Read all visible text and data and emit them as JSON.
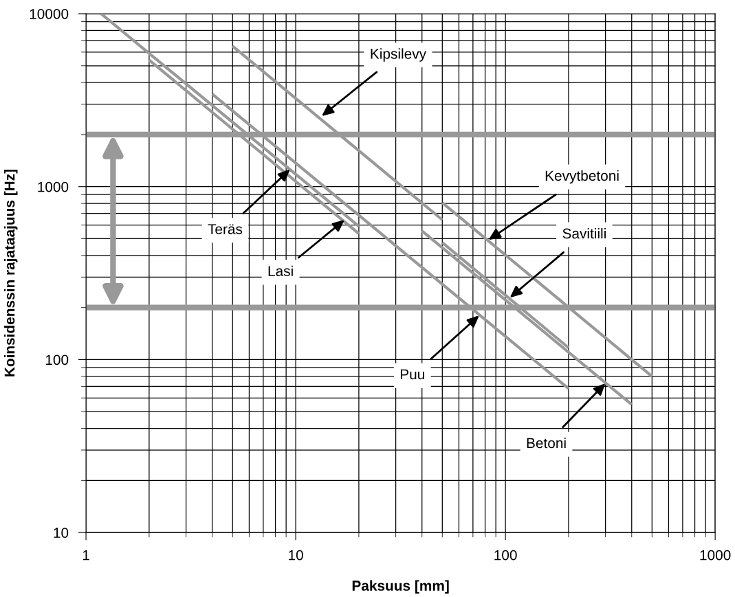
{
  "chart_data": {
    "type": "line",
    "xlabel": "Paksuus [mm]",
    "ylabel": "Koinsidenssin rajataajuus [Hz]",
    "log": "xy",
    "xlim": [
      1,
      1000
    ],
    "ylim": [
      10,
      10000
    ],
    "xticks": [
      1,
      10,
      100,
      1000
    ],
    "yticks": [
      10,
      100,
      1000,
      10000
    ],
    "grid": true,
    "marker": "none",
    "line_style": "solid",
    "series": [
      {
        "color": "#999999",
        "x": [
          1.18,
          20
        ],
        "values": [
          10000,
          590
        ]
      },
      {
        "color": "#999999",
        "x": [
          2,
          20
        ],
        "values": [
          5400,
          535
        ]
      },
      {
        "color": "#999999",
        "x": [
          4,
          200
        ],
        "values": [
          3430,
          68
        ]
      },
      {
        "color": "#999999",
        "x": [
          5,
          50
        ],
        "values": [
          6500,
          643
        ]
      },
      {
        "color": "#999999",
        "x": [
          50,
          500
        ],
        "values": [
          807,
          80
        ]
      },
      {
        "color": "#999999",
        "x": [
          50,
          200
        ],
        "values": [
          475,
          117
        ]
      },
      {
        "color": "#999999",
        "x": [
          40,
          400
        ],
        "values": [
          555,
          55
        ]
      }
    ],
    "ref_lines": [
      {
        "axis": "y",
        "value": 2000,
        "color": "#999999"
      },
      {
        "axis": "y",
        "value": 200,
        "color": "#999999"
      }
    ],
    "annotations": [
      {
        "text": "Kipsilevy",
        "x": 13.3,
        "y": 2560
      },
      {
        "text": "Teräs",
        "x": 9.4,
        "y": 1260
      },
      {
        "text": "Lasi",
        "x": 17.1,
        "y": 643
      },
      {
        "text": "Kevytbetoni",
        "x": 83,
        "y": 492
      },
      {
        "text": "Savitiili",
        "x": 105,
        "y": 228
      },
      {
        "text": "Puu",
        "x": 75,
        "y": 180
      },
      {
        "text": "Betoni",
        "x": 300,
        "y": 73
      }
    ]
  }
}
